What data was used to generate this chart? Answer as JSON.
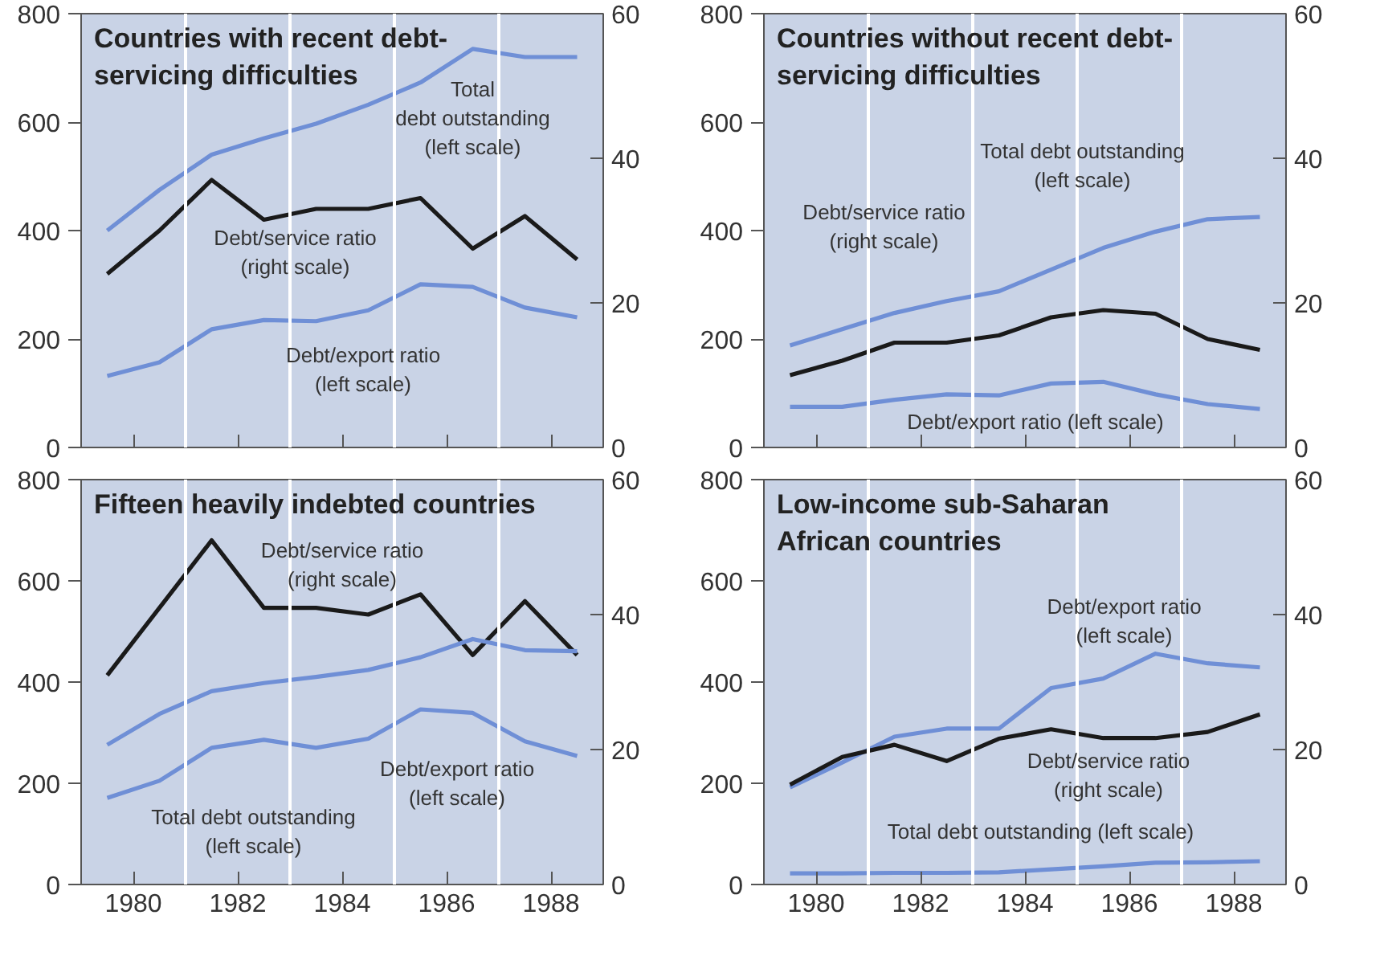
{
  "chart_data": [
    {
      "type": "line",
      "title": "Countries with recent debt-\nservicing difficulties",
      "x": [
        1979.5,
        1980.5,
        1981.5,
        1982.5,
        1983.5,
        1984.5,
        1985.5,
        1986.5,
        1987.5,
        1988.5
      ],
      "xlim": [
        1979,
        1989
      ],
      "xticks": [
        {
          "value": 1980,
          "label": null
        },
        {
          "value": 1982,
          "label": null
        },
        {
          "value": 1984,
          "label": null
        },
        {
          "value": 1986,
          "label": null
        },
        {
          "value": 1988,
          "label": null
        }
      ],
      "ylim": [
        0,
        800
      ],
      "yticks": [
        0,
        200,
        400,
        600,
        800
      ],
      "y2lim": [
        0,
        60
      ],
      "y2ticks": [
        0,
        20,
        40,
        60
      ],
      "tick_labels": "y",
      "grid": false,
      "series": [
        {
          "color": "#6f8fd6",
          "values": [
            400,
            475,
            540,
            570,
            597,
            632,
            673,
            735,
            720,
            720
          ]
        },
        {
          "color": "#1a1a1a",
          "axis": "y2",
          "values": [
            24,
            30,
            37,
            31.5,
            33,
            33,
            34.5,
            27.5,
            32,
            26
          ]
        },
        {
          "color": "#6f8fd6",
          "values": [
            132,
            157,
            218,
            235,
            233,
            253,
            301,
            296,
            258,
            240
          ]
        }
      ],
      "ref_lines": [
        {
          "axis": "x",
          "value": 1981,
          "color": "#ffffff"
        },
        {
          "axis": "x",
          "value": 1983,
          "color": "#ffffff"
        },
        {
          "axis": "x",
          "value": 1985,
          "color": "#ffffff"
        },
        {
          "axis": "x",
          "value": 1987,
          "color": "#ffffff"
        }
      ],
      "annotations": [
        "Total\ndebt outstanding\n(left scale)",
        "Debt/service ratio\n(right scale)",
        "Debt/export ratio\n(left scale)"
      ]
    },
    {
      "type": "line",
      "title": "Countries without recent debt-\nservicing difficulties",
      "x": [
        1979.5,
        1980.5,
        1981.5,
        1982.5,
        1983.5,
        1984.5,
        1985.5,
        1986.5,
        1987.5,
        1988.5
      ],
      "xlim": [
        1979,
        1989
      ],
      "xticks": [
        {
          "value": 1980,
          "label": null
        },
        {
          "value": 1982,
          "label": null
        },
        {
          "value": 1984,
          "label": null
        },
        {
          "value": 1986,
          "label": null
        },
        {
          "value": 1988,
          "label": null
        }
      ],
      "ylim": [
        0,
        800
      ],
      "yticks": [
        0,
        200,
        400,
        600,
        800
      ],
      "y2lim": [
        0,
        60
      ],
      "y2ticks": [
        0,
        20,
        40,
        60
      ],
      "tick_labels": "y",
      "grid": false,
      "series": [
        {
          "color": "#6f8fd6",
          "values": [
            188,
            218,
            248,
            270,
            288,
            328,
            368,
            398,
            421,
            425
          ]
        },
        {
          "color": "#1a1a1a",
          "axis": "y2",
          "values": [
            10,
            12,
            14.5,
            14.5,
            15.5,
            18,
            19,
            18.5,
            15,
            13.5
          ]
        },
        {
          "color": "#6f8fd6",
          "values": [
            75,
            75,
            88,
            98,
            96,
            118,
            121,
            98,
            80,
            71
          ]
        }
      ],
      "ref_lines": [
        {
          "axis": "x",
          "value": 1981,
          "color": "#ffffff"
        },
        {
          "axis": "x",
          "value": 1983,
          "color": "#ffffff"
        },
        {
          "axis": "x",
          "value": 1985,
          "color": "#ffffff"
        },
        {
          "axis": "x",
          "value": 1987,
          "color": "#ffffff"
        }
      ],
      "annotations": [
        "Total debt outstanding\n(left scale)",
        "Debt/service ratio\n(right scale)",
        "Debt/export ratio (left scale)"
      ]
    },
    {
      "type": "line",
      "title": "Fifteen heavily indebted countries",
      "x": [
        1979.5,
        1980.5,
        1981.5,
        1982.5,
        1983.5,
        1984.5,
        1985.5,
        1986.5,
        1987.5,
        1988.5
      ],
      "xlim": [
        1979,
        1989
      ],
      "xticks": [
        1980,
        1982,
        1984,
        1986,
        1988
      ],
      "ylim": [
        0,
        800
      ],
      "yticks": [
        0,
        200,
        400,
        600,
        800
      ],
      "y2lim": [
        0,
        60
      ],
      "y2ticks": [
        0,
        20,
        40,
        60
      ],
      "grid": false,
      "series": [
        {
          "color": "#1a1a1a",
          "axis": "y2",
          "values": [
            31,
            41,
            51,
            41,
            41,
            40,
            43,
            34,
            42,
            34
          ]
        },
        {
          "color": "#6f8fd6",
          "values": [
            276,
            337,
            382,
            398,
            410,
            424,
            449,
            485,
            463,
            461
          ]
        },
        {
          "color": "#6f8fd6",
          "values": [
            171,
            205,
            270,
            286,
            270,
            288,
            346,
            339,
            283,
            254
          ]
        }
      ],
      "ref_lines": [
        {
          "axis": "x",
          "value": 1981,
          "color": "#ffffff"
        },
        {
          "axis": "x",
          "value": 1983,
          "color": "#ffffff"
        },
        {
          "axis": "x",
          "value": 1985,
          "color": "#ffffff"
        },
        {
          "axis": "x",
          "value": 1987,
          "color": "#ffffff"
        }
      ],
      "annotations": [
        "Debt/service ratio\n(right scale)",
        "Debt/export ratio\n(left scale)",
        "Total debt outstanding\n(left scale)"
      ]
    },
    {
      "type": "line",
      "title": "Low-income sub-Saharan\nAfrican countries",
      "x": [
        1979.5,
        1980.5,
        1981.5,
        1982.5,
        1983.5,
        1984.5,
        1985.5,
        1986.5,
        1987.5,
        1988.5
      ],
      "xlim": [
        1979,
        1989
      ],
      "xticks": [
        1980,
        1982,
        1984,
        1986,
        1988
      ],
      "ylim": [
        0,
        800
      ],
      "yticks": [
        0,
        200,
        400,
        600,
        800
      ],
      "y2lim": [
        0,
        60
      ],
      "y2ticks": [
        0,
        20,
        40,
        60
      ],
      "grid": false,
      "series": [
        {
          "color": "#6f8fd6",
          "values": [
            192,
            241,
            292,
            308,
            308,
            388,
            407,
            456,
            437,
            429
          ]
        },
        {
          "color": "#1a1a1a",
          "axis": "y2",
          "values": [
            14.8,
            18.9,
            20.7,
            18.3,
            21.6,
            23,
            21.7,
            21.7,
            22.6,
            25.2
          ]
        },
        {
          "color": "#6f8fd6",
          "values": [
            22,
            22,
            23,
            23,
            24,
            30,
            36,
            43,
            44,
            46
          ]
        }
      ],
      "ref_lines": [
        {
          "axis": "x",
          "value": 1981,
          "color": "#ffffff"
        },
        {
          "axis": "x",
          "value": 1983,
          "color": "#ffffff"
        },
        {
          "axis": "x",
          "value": 1985,
          "color": "#ffffff"
        },
        {
          "axis": "x",
          "value": 1987,
          "color": "#ffffff"
        }
      ],
      "annotations": [
        "Debt/export ratio\n(left scale)",
        "Debt/service ratio\n(right scale)",
        "Total debt outstanding (left scale)"
      ]
    }
  ]
}
